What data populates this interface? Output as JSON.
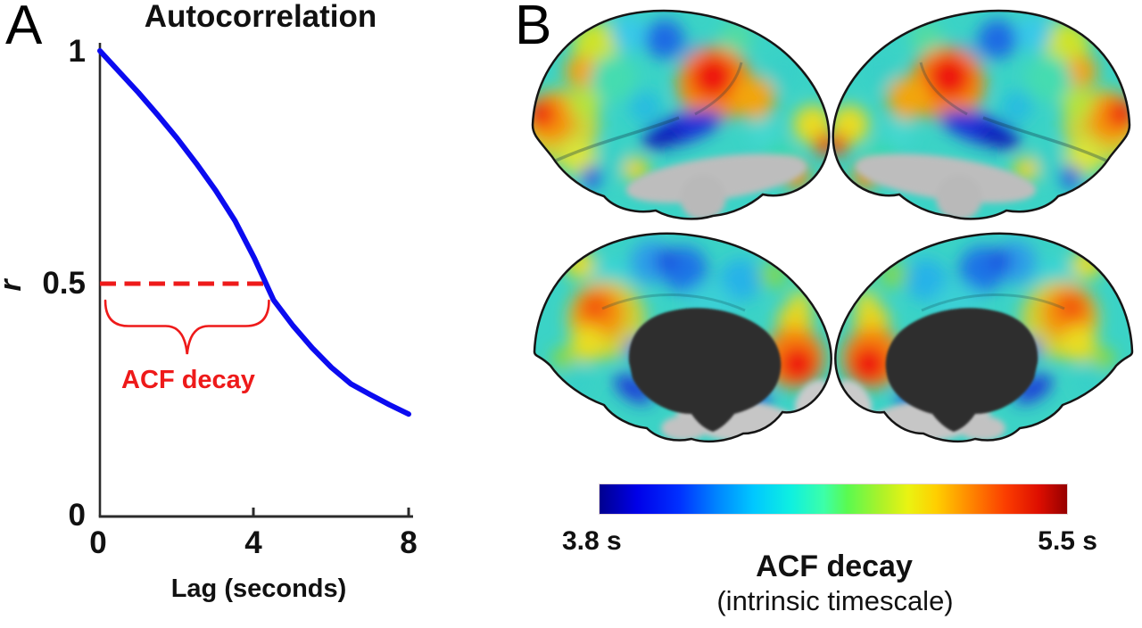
{
  "figure": {
    "background": "#ffffff",
    "panelA": {
      "label": "A",
      "title": "Autocorrelation",
      "ylabel": "r",
      "xlabel": "Lag (seconds)",
      "yticks": [
        "1",
        "0.5",
        "0"
      ],
      "xticks": [
        "0",
        "4",
        "8"
      ],
      "curve": {
        "name": "autocorrelation function",
        "color": "#0b0bf0"
      },
      "annotation": {
        "label": "ACF decay",
        "color": "#ee1a1a",
        "threshold_r": 0.5,
        "decay_lag_s": 4.35
      }
    },
    "panelB": {
      "label": "B",
      "views": [
        "left lateral",
        "right lateral",
        "left medial",
        "right medial"
      ],
      "colorbar": {
        "min_label": "3.8 s",
        "max_label": "5.5 s",
        "title": "ACF decay",
        "subtitle": "(intrinsic timescale)",
        "colormap": "jet",
        "gradient_stops": [
          {
            "p": 0.0,
            "c": "#00008f"
          },
          {
            "p": 0.08,
            "c": "#0000e8"
          },
          {
            "p": 0.17,
            "c": "#0030ff"
          },
          {
            "p": 0.25,
            "c": "#0084ff"
          },
          {
            "p": 0.33,
            "c": "#00c8ff"
          },
          {
            "p": 0.41,
            "c": "#0ff0e0"
          },
          {
            "p": 0.48,
            "c": "#3cffa8"
          },
          {
            "p": 0.53,
            "c": "#5afa50"
          },
          {
            "p": 0.6,
            "c": "#aaf22a"
          },
          {
            "p": 0.66,
            "c": "#eaf312"
          },
          {
            "p": 0.72,
            "c": "#ffcf00"
          },
          {
            "p": 0.79,
            "c": "#ff8a00"
          },
          {
            "p": 0.87,
            "c": "#fb3c00"
          },
          {
            "p": 0.94,
            "c": "#dd0e00"
          },
          {
            "p": 1.0,
            "c": "#960000"
          }
        ]
      }
    }
  },
  "chart_data": [
    {
      "type": "line",
      "title": "Autocorrelation",
      "xlabel": "Lag (seconds)",
      "ylabel": "r",
      "xlim": [
        0,
        8
      ],
      "ylim": [
        0,
        1
      ],
      "xticks": [
        0,
        4,
        8
      ],
      "yticks": [
        0,
        0.5,
        1
      ],
      "grid": false,
      "legend": "none",
      "x": [
        0,
        0.5,
        1,
        1.5,
        2,
        2.5,
        3,
        3.5,
        4,
        4.5,
        5,
        5.5,
        6,
        6.5,
        7,
        7.5,
        8
      ],
      "series": [
        {
          "name": "autocorrelation",
          "color": "#0b0bf0",
          "values": [
            1.0,
            0.955,
            0.91,
            0.862,
            0.812,
            0.758,
            0.7,
            0.635,
            0.555,
            0.465,
            0.41,
            0.362,
            0.32,
            0.285,
            0.262,
            0.24,
            0.22
          ]
        }
      ],
      "annotations": [
        {
          "type": "hline-segment",
          "y": 0.5,
          "x_from": 0,
          "x_to": 4.35,
          "style": "dashed",
          "color": "#ee1a1a"
        },
        {
          "type": "brace-below",
          "x_from": 0.14,
          "x_to": 4.38,
          "below_y": 0.5,
          "label": "ACF decay",
          "color": "#ee1a1a"
        }
      ]
    },
    {
      "type": "heatmap",
      "title": "ACF decay",
      "subtitle": "(intrinsic timescale)",
      "colormap": "jet",
      "range_labels": [
        "3.8 s",
        "5.5 s"
      ],
      "layout": "4 cortical surface views: 2 lateral (top), 2 medial (bottom); colorbar below"
    }
  ]
}
